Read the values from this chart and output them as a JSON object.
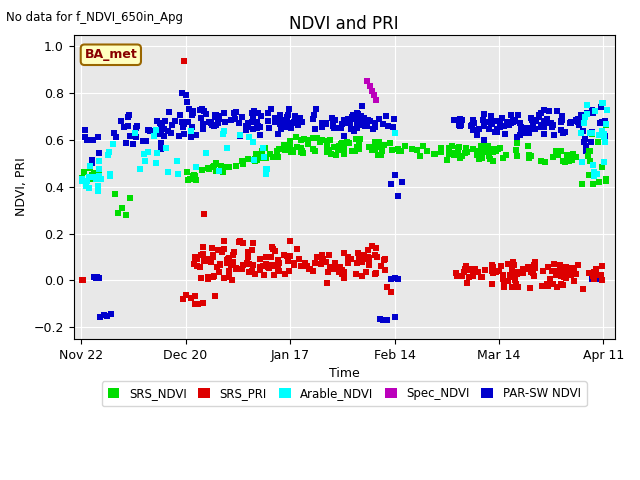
{
  "title": "NDVI and PRI",
  "suptitle_left": "No data for f_NDVI_650in_Apg",
  "ylabel": "NDVI, PRI",
  "xlabel": "Time",
  "ylim": [
    -0.25,
    1.05
  ],
  "yticks": [
    -0.2,
    0.0,
    0.2,
    0.4,
    0.6,
    0.8,
    1.0
  ],
  "xtick_labels": [
    "Nov 22",
    "Dec 20",
    "Jan 17",
    "Feb 14",
    "Mar 14",
    "Apr 11"
  ],
  "xtick_days": [
    0,
    28,
    56,
    84,
    112,
    140
  ],
  "bg_color": "#e8e8e8",
  "colors": {
    "SRS_NDVI": "#00dd00",
    "SRS_PRI": "#dd0000",
    "Arable_NDVI": "#00ffff",
    "Spec_NDVI": "#bb00bb",
    "PARSW_NDVI": "#0000cc"
  },
  "legend_labels": [
    "SRS_NDVI",
    "SRS_PRI",
    "Arable_NDVI",
    "Spec_NDVI",
    "PAR-SW NDVI"
  ],
  "legend_colors": [
    "#00dd00",
    "#dd0000",
    "#00ffff",
    "#bb00bb",
    "#0000cc"
  ],
  "ba_met_label": "BA_met",
  "marker_size": 5
}
